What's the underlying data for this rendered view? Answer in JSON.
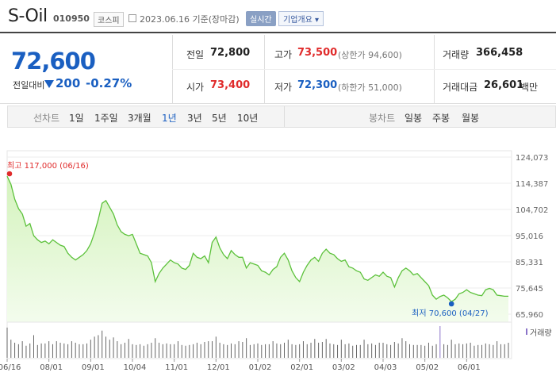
{
  "header": {
    "company": "S-Oil",
    "code": "010950",
    "market": "코스피",
    "date": "2023.06.16 기준(장마감)",
    "realtime": "실시간",
    "company_info": "기업개요 ▾"
  },
  "quote": {
    "price": "72,600",
    "change_label": "전일대비",
    "change_amount": "200",
    "change_pct": "-0.27%",
    "direction": "down",
    "fields": [
      {
        "label": "전일",
        "value": "72,800",
        "color": "neutral",
        "limit": ""
      },
      {
        "label": "고가",
        "value": "73,500",
        "color": "up",
        "limit": "(상한가 94,600)"
      },
      {
        "label": "거래량",
        "value": "366,458",
        "color": "neutral",
        "limit": ""
      },
      {
        "label": "시가",
        "value": "73,400",
        "color": "up",
        "limit": ""
      },
      {
        "label": "저가",
        "value": "72,300",
        "color": "down",
        "limit": "(하한가 51,000)"
      },
      {
        "label": "거래대금",
        "value": "26,601",
        "color": "neutral",
        "limit": "백만"
      }
    ]
  },
  "tabs": {
    "line_header": "선차트",
    "line": [
      "1일",
      "1주일",
      "3개월",
      "1년",
      "3년",
      "5년",
      "10년"
    ],
    "selected": "1년",
    "candle_header": "봉차트",
    "candle": [
      "일봉",
      "주봉",
      "월봉"
    ]
  },
  "colors": {
    "line": "#5cc13b",
    "fill_top": "#d4f3bd",
    "fill_bottom": "#f3fced",
    "high_marker": "#e02b2b",
    "low_marker": "#1a5fc1",
    "volume": "#666666",
    "volume_peak": "#8a73c8"
  },
  "chart_data": {
    "type": "area",
    "x_tick_labels": [
      "06/16",
      "08/01",
      "09/01",
      "10/04",
      "11/01",
      "12/01",
      "01/02",
      "02/01",
      "03/02",
      "04/03",
      "05/02",
      "06/01"
    ],
    "y_ticks": [
      124073,
      114387,
      104702,
      95016,
      85331,
      75645,
      65960
    ],
    "y_tick_labels": [
      "124,073",
      "114,387",
      "104,702",
      "95,016",
      "85,331",
      "75,645",
      "65,960"
    ],
    "ylim": [
      65960,
      124073
    ],
    "high": {
      "label": "최고 117,000 (06/16)",
      "value": 117000
    },
    "low": {
      "label": "최저 70,600 (04/27)",
      "value": 70600
    },
    "volume_label": "거래량",
    "series": [
      {
        "name": "",
        "values": [
          117000,
          114000,
          108500,
          105000,
          103000,
          98500,
          99500,
          95000,
          93500,
          92500,
          93000,
          92000,
          93500,
          92500,
          91500,
          91000,
          88500,
          87000,
          86000,
          87000,
          88000,
          89500,
          92000,
          96000,
          101000,
          107000,
          108000,
          105500,
          103000,
          99000,
          96500,
          95500,
          95000,
          95500,
          92000,
          88500,
          88000,
          87500,
          85000,
          78000,
          81000,
          83000,
          84500,
          86000,
          85000,
          84500,
          83000,
          82500,
          84000,
          88500,
          87000,
          86500,
          87500,
          85000,
          92500,
          94500,
          90500,
          88000,
          86500,
          89500,
          88000,
          87000,
          87000,
          83000,
          85000,
          84500,
          84000,
          82000,
          81500,
          80500,
          82500,
          83500,
          87000,
          88500,
          86000,
          82000,
          79500,
          78000,
          81500,
          84000,
          86000,
          87000,
          85500,
          88500,
          90000,
          88500,
          88000,
          86500,
          85500,
          86000,
          83500,
          83000,
          82000,
          81500,
          79000,
          78500,
          79500,
          80500,
          80000,
          81500,
          80000,
          79500,
          76000,
          79500,
          82000,
          83000,
          82000,
          80500,
          81000,
          79500,
          78000,
          76500,
          73000,
          71500,
          72500,
          73000,
          72000,
          70600,
          71500,
          73500,
          74000,
          75000,
          74000,
          73500,
          73000,
          72800,
          75000,
          75500,
          75000,
          73000,
          72800,
          72600,
          72600
        ]
      }
    ],
    "volume": [
      40,
      24,
      20,
      18,
      22,
      16,
      19,
      30,
      17,
      19,
      19,
      22,
      18,
      22,
      20,
      19,
      18,
      22,
      20,
      18,
      18,
      19,
      24,
      28,
      30,
      36,
      28,
      24,
      27,
      22,
      18,
      20,
      25,
      18,
      17,
      18,
      16,
      18,
      20,
      26,
      20,
      18,
      19,
      18,
      18,
      22,
      17,
      16,
      17,
      18,
      20,
      18,
      21,
      22,
      22,
      28,
      20,
      18,
      17,
      19,
      18,
      22,
      21,
      26,
      17,
      18,
      19,
      17,
      18,
      18,
      22,
      19,
      18,
      20,
      24,
      18,
      17,
      18,
      22,
      18,
      20,
      25,
      20,
      21,
      25,
      19,
      18,
      17,
      24,
      18,
      19,
      16,
      17,
      17,
      24,
      18,
      19,
      17,
      20,
      20,
      18,
      17,
      21,
      19,
      26,
      22,
      18,
      17,
      17,
      17,
      16,
      20,
      16,
      18,
      42,
      18,
      17,
      24,
      18,
      19,
      18,
      19,
      20,
      16,
      17,
      17,
      19,
      18,
      17,
      22,
      18,
      18,
      20
    ]
  }
}
